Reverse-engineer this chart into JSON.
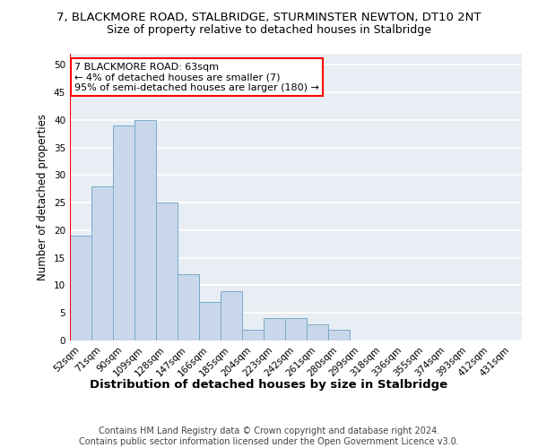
{
  "title_line1": "7, BLACKMORE ROAD, STALBRIDGE, STURMINSTER NEWTON, DT10 2NT",
  "title_line2": "Size of property relative to detached houses in Stalbridge",
  "xlabel": "Distribution of detached houses by size in Stalbridge",
  "ylabel": "Number of detached properties",
  "categories": [
    "52sqm",
    "71sqm",
    "90sqm",
    "109sqm",
    "128sqm",
    "147sqm",
    "166sqm",
    "185sqm",
    "204sqm",
    "223sqm",
    "242sqm",
    "261sqm",
    "280sqm",
    "299sqm",
    "318sqm",
    "336sqm",
    "355sqm",
    "374sqm",
    "393sqm",
    "412sqm",
    "431sqm"
  ],
  "values": [
    19,
    28,
    39,
    40,
    25,
    12,
    7,
    9,
    2,
    4,
    4,
    3,
    2,
    0,
    0,
    0,
    0,
    0,
    0,
    0,
    0
  ],
  "bar_color": "#c8d8ea",
  "bar_edge_color": "#7aaac8",
  "annotation_text": "7 BLACKMORE ROAD: 63sqm\n← 4% of detached houses are smaller (7)\n95% of semi-detached houses are larger (180) →",
  "annotation_box_color": "white",
  "annotation_box_edge_color": "red",
  "vline_color": "red",
  "ylim": [
    0,
    52
  ],
  "yticks": [
    0,
    5,
    10,
    15,
    20,
    25,
    30,
    35,
    40,
    45,
    50
  ],
  "footer_line1": "Contains HM Land Registry data © Crown copyright and database right 2024.",
  "footer_line2": "Contains public sector information licensed under the Open Government Licence v3.0.",
  "plot_bg_color": "#e8eef4",
  "fig_bg_color": "white",
  "grid_color": "white",
  "title1_fontsize": 9.5,
  "title2_fontsize": 9,
  "xlabel_fontsize": 9.5,
  "ylabel_fontsize": 8.5,
  "annotation_fontsize": 8,
  "footer_fontsize": 7,
  "tick_fontsize": 7.5
}
